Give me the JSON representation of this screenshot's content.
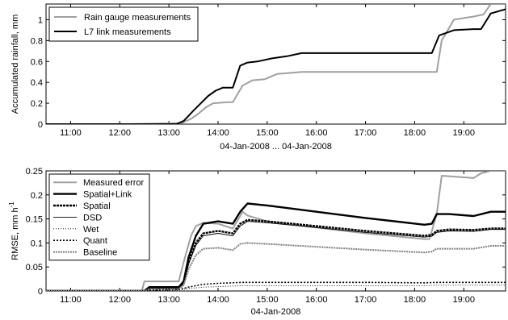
{
  "chart_data": [
    {
      "type": "line",
      "xlabel": "04-Jan-2008 ... 04-Jan-2008",
      "ylabel": "Accumulated rainfall, mm",
      "xlim": [
        10.5,
        19.85
      ],
      "ylim": [
        0,
        1.15
      ],
      "xticks": [
        "11:00",
        "12:00",
        "13:00",
        "14:00",
        "15:00",
        "16:00",
        "17:00",
        "18:00",
        "19:00"
      ],
      "yticks": [
        "0",
        "0.2",
        "0.4",
        "0.6",
        "0.8",
        "1"
      ],
      "legend_position": "top-left",
      "series": [
        {
          "name": "Rain gauge measurements",
          "color": "#a0a0a0",
          "x": [
            10.5,
            12.2,
            13.25,
            13.45,
            13.6,
            13.75,
            13.9,
            14.2,
            14.3,
            14.5,
            14.7,
            14.95,
            15.2,
            15.7,
            16.5,
            17.5,
            18.25,
            18.45,
            18.55,
            18.8,
            19.2,
            19.4,
            19.55,
            19.85
          ],
          "y": [
            0,
            0,
            0.01,
            0.05,
            0.1,
            0.16,
            0.2,
            0.21,
            0.21,
            0.37,
            0.42,
            0.43,
            0.48,
            0.5,
            0.5,
            0.5,
            0.5,
            0.5,
            0.8,
            1.0,
            1.03,
            1.05,
            1.15,
            1.15
          ]
        },
        {
          "name": "L7 link measurements",
          "color": "#000000",
          "x": [
            10.5,
            13.15,
            13.3,
            13.5,
            13.65,
            13.8,
            13.95,
            14.1,
            14.3,
            14.45,
            14.6,
            14.8,
            15.1,
            15.4,
            15.7,
            16.5,
            17.5,
            18.2,
            18.35,
            18.5,
            18.8,
            19.2,
            19.35,
            19.55,
            19.85
          ],
          "y": [
            0,
            0,
            0.03,
            0.13,
            0.2,
            0.27,
            0.32,
            0.35,
            0.35,
            0.56,
            0.59,
            0.6,
            0.63,
            0.65,
            0.68,
            0.68,
            0.68,
            0.68,
            0.68,
            0.85,
            0.9,
            0.91,
            0.91,
            1.06,
            1.1
          ]
        }
      ]
    },
    {
      "type": "line",
      "xlabel": "04-Jan-2008",
      "ylabel": "RMSE, mm h",
      "ylabel_superscript": "-1",
      "xlim": [
        10.5,
        19.85
      ],
      "ylim": [
        0,
        0.25
      ],
      "xticks": [
        "11:00",
        "12:00",
        "13:00",
        "14:00",
        "15:00",
        "16:00",
        "17:00",
        "18:00",
        "19:00"
      ],
      "yticks": [
        "0",
        "0.05",
        "0.1",
        "0.15",
        "0.2",
        "0.25"
      ],
      "legend_position": "top-left",
      "series": [
        {
          "name": "Measured error",
          "color": "#a0a0a0",
          "dash": "solid",
          "width": 2,
          "x": [
            10.5,
            12.45,
            12.5,
            13.2,
            13.3,
            13.45,
            13.55,
            13.7,
            14.0,
            14.3,
            14.5,
            14.6,
            15.0,
            16.0,
            17.0,
            17.8,
            18.2,
            18.3,
            18.45,
            18.55,
            19.2,
            19.35,
            19.55,
            19.85
          ],
          "y": [
            0,
            0,
            0.02,
            0.02,
            0.06,
            0.115,
            0.135,
            0.142,
            0.14,
            0.13,
            0.165,
            0.157,
            0.145,
            0.132,
            0.12,
            0.112,
            0.108,
            0.108,
            0.16,
            0.24,
            0.235,
            0.245,
            0.25,
            0.25
          ]
        },
        {
          "name": "Spatial+Link",
          "color": "#000000",
          "dash": "solid",
          "width": 2.4,
          "x": [
            10.5,
            12.5,
            12.6,
            13.2,
            13.3,
            13.4,
            13.55,
            13.7,
            14.0,
            14.3,
            14.45,
            14.6,
            15.0,
            16.0,
            17.0,
            18.2,
            18.35,
            18.45,
            18.7,
            19.2,
            19.55,
            19.85
          ],
          "y": [
            0,
            0,
            0.008,
            0.008,
            0.02,
            0.07,
            0.115,
            0.14,
            0.145,
            0.14,
            0.165,
            0.182,
            0.178,
            0.165,
            0.152,
            0.138,
            0.14,
            0.16,
            0.16,
            0.156,
            0.165,
            0.165
          ]
        },
        {
          "name": "Spatial",
          "color": "#000000",
          "dash": "3,1",
          "width": 2.4,
          "x": [
            10.5,
            12.5,
            12.6,
            13.2,
            13.3,
            13.4,
            13.55,
            13.7,
            14.0,
            14.3,
            14.45,
            14.6,
            15.0,
            16.0,
            17.0,
            18.2,
            18.35,
            18.45,
            18.7,
            19.2,
            19.55,
            19.85
          ],
          "y": [
            0,
            0,
            0.006,
            0.006,
            0.018,
            0.06,
            0.1,
            0.12,
            0.125,
            0.12,
            0.14,
            0.148,
            0.145,
            0.135,
            0.125,
            0.115,
            0.117,
            0.125,
            0.128,
            0.127,
            0.13,
            0.13
          ]
        },
        {
          "name": "DSD",
          "color": "#000000",
          "dash": "solid",
          "width": 0.9,
          "x": [
            10.5,
            12.5,
            12.6,
            13.2,
            13.3,
            13.4,
            13.55,
            13.7,
            14.0,
            14.3,
            14.45,
            14.6,
            15.0,
            16.0,
            17.0,
            18.2,
            18.35,
            18.45,
            18.7,
            19.2,
            19.55,
            19.85
          ],
          "y": [
            0,
            0,
            0.005,
            0.005,
            0.016,
            0.056,
            0.095,
            0.115,
            0.12,
            0.115,
            0.135,
            0.145,
            0.142,
            0.132,
            0.122,
            0.112,
            0.114,
            0.122,
            0.125,
            0.124,
            0.128,
            0.128
          ]
        },
        {
          "name": "Wet",
          "color": "#000000",
          "dash": "1,2",
          "width": 0.9,
          "x": [
            10.5,
            12.5,
            12.6,
            13.2,
            13.4,
            13.7,
            14.0,
            14.5,
            15.0,
            16.0,
            17.0,
            18.2,
            18.45,
            19.2,
            19.85
          ],
          "y": [
            0,
            0,
            0.001,
            0.002,
            0.005,
            0.008,
            0.009,
            0.011,
            0.011,
            0.011,
            0.011,
            0.011,
            0.012,
            0.012,
            0.012
          ]
        },
        {
          "name": "Quant",
          "color": "#000000",
          "dash": "2,2",
          "width": 1.6,
          "x": [
            10.5,
            12.5,
            12.6,
            13.2,
            13.4,
            13.7,
            14.0,
            14.5,
            15.0,
            16.0,
            17.0,
            18.2,
            18.45,
            19.2,
            19.85
          ],
          "y": [
            0,
            0,
            0.002,
            0.003,
            0.008,
            0.014,
            0.016,
            0.018,
            0.018,
            0.018,
            0.018,
            0.017,
            0.018,
            0.018,
            0.018
          ]
        },
        {
          "name": "Baseline",
          "color": "#808080",
          "dash": "2,1",
          "width": 2,
          "x": [
            10.5,
            12.5,
            12.6,
            13.2,
            13.3,
            13.4,
            13.55,
            13.7,
            14.0,
            14.3,
            14.45,
            14.6,
            15.0,
            16.0,
            17.0,
            18.2,
            18.35,
            18.45,
            18.7,
            19.2,
            19.55,
            19.85
          ],
          "y": [
            0,
            0,
            0.004,
            0.004,
            0.012,
            0.045,
            0.075,
            0.088,
            0.09,
            0.085,
            0.098,
            0.1,
            0.098,
            0.092,
            0.086,
            0.08,
            0.082,
            0.088,
            0.088,
            0.088,
            0.094,
            0.094
          ]
        }
      ]
    }
  ]
}
